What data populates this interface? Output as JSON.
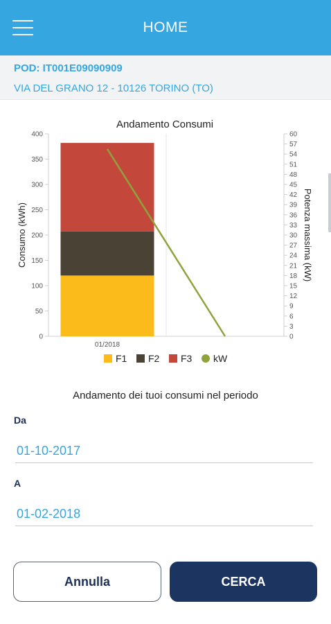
{
  "header": {
    "title": "HOME",
    "menu_icon": "hamburger-menu-icon"
  },
  "supply": {
    "pod": "POD: IT001E09090909",
    "address": "VIA DEL GRANO 12 - 10126 TORINO (TO)"
  },
  "chart_data": {
    "type": "bar",
    "title": "Andamento Consumi",
    "stacked": true,
    "categories": [
      "01/2018"
    ],
    "ylabel": "Consumo (kWh)",
    "ylim": [
      0,
      400
    ],
    "yticks": [
      0,
      50,
      100,
      150,
      200,
      250,
      300,
      350,
      400
    ],
    "y2label": "Potenza massima (kW)",
    "y2lim": [
      0,
      60
    ],
    "y2ticks": [
      0,
      3,
      6,
      9,
      12,
      15,
      18,
      21,
      24,
      27,
      30,
      33,
      36,
      39,
      42,
      45,
      48,
      51,
      54,
      57,
      60
    ],
    "series": [
      {
        "name": "F1",
        "type": "bar",
        "values": [
          120
        ],
        "color": "#fbbb1b"
      },
      {
        "name": "F2",
        "type": "bar",
        "values": [
          87
        ],
        "color": "#4b4236"
      },
      {
        "name": "F3",
        "type": "bar",
        "values": [
          175
        ],
        "color": "#c4473b"
      },
      {
        "name": "kW",
        "type": "line",
        "axis": "y2",
        "x": [
          0,
          1
        ],
        "values": [
          55.5,
          0
        ],
        "color": "#8fa33c"
      }
    ],
    "legend": "bottom",
    "grid": true
  },
  "period": {
    "caption": "Andamento dei tuoi consumi nel periodo",
    "from_label": "Da",
    "from_value": "01-10-2017",
    "to_label": "A",
    "to_value": "01-02-2018"
  },
  "buttons": {
    "cancel": "Annulla",
    "search": "CERCA"
  }
}
